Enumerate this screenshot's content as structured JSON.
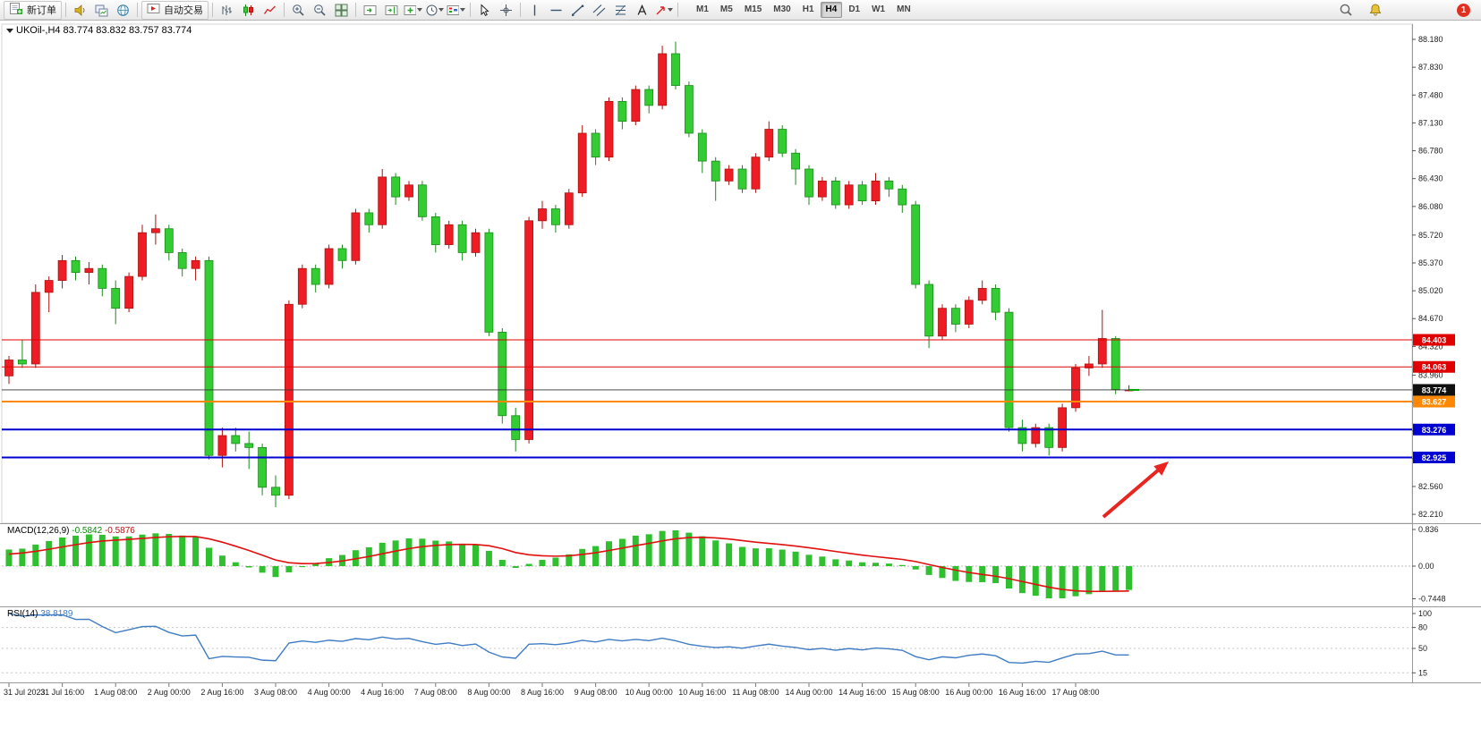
{
  "toolbar": {
    "new_order_label": "新订单",
    "auto_trading_label": "自动交易",
    "timeframes": [
      "M1",
      "M5",
      "M15",
      "M30",
      "H1",
      "H4",
      "D1",
      "W1",
      "MN"
    ],
    "active_timeframe": "H4",
    "notification_count": "1"
  },
  "chart": {
    "title": "UKOil-,H4 83.774 83.832 83.757 83.774",
    "symbol": "UKOil-",
    "timeframe": "H4"
  },
  "macd": {
    "label": "MACD(12,26,9)",
    "main_value": "-0.5842",
    "signal_value": "-0.5876",
    "ticks": [
      {
        "label": "0.836",
        "value": 0.836
      },
      {
        "label": "0.00",
        "value": 0
      },
      {
        "label": "-0.7448",
        "value": -0.7448
      }
    ]
  },
  "rsi": {
    "label": "RSI(14)",
    "value": "38.8189",
    "ticks": [
      {
        "label": "100",
        "value": 100
      },
      {
        "label": "80",
        "value": 80
      },
      {
        "label": "50",
        "value": 50
      },
      {
        "label": "15",
        "value": 15
      }
    ]
  },
  "chart_data": {
    "type": "candlestick",
    "symbol": "UKOil-",
    "timeframe": "H4",
    "ohlc_current": {
      "open": "83.774",
      "high": "83.832",
      "low": "83.757",
      "close": "83.774"
    },
    "ylim": [
      82.12,
      88.34
    ],
    "price_ticks": [
      "88.180",
      "87.830",
      "87.480",
      "87.130",
      "86.780",
      "86.430",
      "86.080",
      "85.720",
      "85.370",
      "85.020",
      "84.670",
      "84.320",
      "83.960",
      "83.610",
      "83.260",
      "82.910",
      "82.560",
      "82.210"
    ],
    "time_labels": [
      "31 Jul 2023",
      "31 Jul 16:00",
      "1 Aug 08:00",
      "2 Aug 00:00",
      "2 Aug 16:00",
      "3 Aug 08:00",
      "4 Aug 00:00",
      "4 Aug 16:00",
      "7 Aug 08:00",
      "8 Aug 00:00",
      "8 Aug 16:00",
      "9 Aug 08:00",
      "10 Aug 00:00",
      "10 Aug 16:00",
      "11 Aug 08:00",
      "14 Aug 00:00",
      "14 Aug 16:00",
      "15 Aug 08:00",
      "16 Aug 00:00",
      "16 Aug 16:00",
      "17 Aug 08:00"
    ],
    "candles": [
      [
        83.95,
        84.2,
        83.85,
        84.15
      ],
      [
        84.15,
        84.4,
        84.05,
        84.1
      ],
      [
        84.1,
        85.1,
        84.05,
        85.0
      ],
      [
        85.0,
        85.2,
        84.75,
        85.15
      ],
      [
        85.15,
        85.47,
        85.05,
        85.4
      ],
      [
        85.4,
        85.45,
        85.15,
        85.25
      ],
      [
        85.25,
        85.38,
        85.1,
        85.3
      ],
      [
        85.3,
        85.35,
        84.95,
        85.05
      ],
      [
        85.05,
        85.15,
        84.6,
        84.8
      ],
      [
        84.8,
        85.25,
        84.75,
        85.2
      ],
      [
        85.2,
        85.85,
        85.15,
        85.75
      ],
      [
        85.75,
        85.98,
        85.6,
        85.8
      ],
      [
        85.8,
        85.85,
        85.4,
        85.5
      ],
      [
        85.5,
        85.55,
        85.2,
        85.3
      ],
      [
        85.3,
        85.45,
        85.15,
        85.4
      ],
      [
        85.4,
        85.45,
        82.9,
        82.95
      ],
      [
        82.95,
        83.3,
        82.8,
        83.2
      ],
      [
        83.2,
        83.3,
        83.0,
        83.1
      ],
      [
        83.1,
        83.25,
        82.78,
        83.05
      ],
      [
        83.05,
        83.1,
        82.45,
        82.55
      ],
      [
        82.55,
        82.7,
        82.3,
        82.45
      ],
      [
        82.45,
        84.9,
        82.4,
        84.85
      ],
      [
        84.85,
        85.35,
        84.8,
        85.3
      ],
      [
        85.3,
        85.35,
        85.0,
        85.1
      ],
      [
        85.1,
        85.6,
        85.05,
        85.55
      ],
      [
        85.55,
        85.6,
        85.3,
        85.4
      ],
      [
        85.4,
        86.05,
        85.35,
        86.0
      ],
      [
        86.0,
        86.05,
        85.75,
        85.85
      ],
      [
        85.85,
        86.55,
        85.8,
        86.45
      ],
      [
        86.45,
        86.5,
        86.1,
        86.2
      ],
      [
        86.2,
        86.4,
        86.15,
        86.35
      ],
      [
        86.35,
        86.4,
        85.9,
        85.95
      ],
      [
        85.95,
        86.0,
        85.5,
        85.6
      ],
      [
        85.6,
        85.9,
        85.55,
        85.85
      ],
      [
        85.85,
        85.9,
        85.4,
        85.5
      ],
      [
        85.5,
        85.8,
        85.45,
        85.75
      ],
      [
        85.75,
        85.8,
        84.45,
        84.5
      ],
      [
        84.5,
        84.55,
        83.35,
        83.45
      ],
      [
        83.45,
        83.55,
        83.0,
        83.15
      ],
      [
        83.15,
        85.95,
        83.1,
        85.9
      ],
      [
        85.9,
        86.15,
        85.8,
        86.05
      ],
      [
        86.05,
        86.1,
        85.75,
        85.85
      ],
      [
        85.85,
        86.3,
        85.8,
        86.25
      ],
      [
        86.25,
        87.1,
        86.2,
        87.0
      ],
      [
        87.0,
        87.05,
        86.6,
        86.7
      ],
      [
        86.7,
        87.45,
        86.65,
        87.4
      ],
      [
        87.4,
        87.45,
        87.05,
        87.15
      ],
      [
        87.15,
        87.6,
        87.1,
        87.55
      ],
      [
        87.55,
        87.6,
        87.25,
        87.35
      ],
      [
        87.35,
        88.1,
        87.3,
        88.0
      ],
      [
        88.0,
        88.15,
        87.55,
        87.6
      ],
      [
        87.6,
        87.65,
        86.95,
        87.0
      ],
      [
        87.0,
        87.05,
        86.5,
        86.65
      ],
      [
        86.65,
        86.7,
        86.15,
        86.4
      ],
      [
        86.4,
        86.6,
        86.35,
        86.55
      ],
      [
        86.55,
        86.6,
        86.25,
        86.3
      ],
      [
        86.3,
        86.75,
        86.25,
        86.7
      ],
      [
        86.7,
        87.15,
        86.65,
        87.05
      ],
      [
        87.05,
        87.1,
        86.7,
        86.75
      ],
      [
        86.75,
        86.8,
        86.35,
        86.55
      ],
      [
        86.55,
        86.6,
        86.1,
        86.2
      ],
      [
        86.2,
        86.45,
        86.15,
        86.4
      ],
      [
        86.4,
        86.45,
        86.05,
        86.1
      ],
      [
        86.1,
        86.4,
        86.05,
        86.35
      ],
      [
        86.35,
        86.4,
        86.1,
        86.15
      ],
      [
        86.15,
        86.5,
        86.1,
        86.4
      ],
      [
        86.4,
        86.45,
        86.2,
        86.3
      ],
      [
        86.3,
        86.35,
        86.0,
        86.1
      ],
      [
        86.1,
        86.15,
        85.05,
        85.1
      ],
      [
        85.1,
        85.15,
        84.3,
        84.45
      ],
      [
        84.45,
        84.85,
        84.4,
        84.8
      ],
      [
        84.8,
        84.85,
        84.5,
        84.6
      ],
      [
        84.6,
        84.95,
        84.55,
        84.9
      ],
      [
        84.9,
        85.15,
        84.85,
        85.05
      ],
      [
        85.05,
        85.1,
        84.65,
        84.75
      ],
      [
        84.75,
        84.8,
        83.25,
        83.3
      ],
      [
        83.3,
        83.4,
        83.0,
        83.1
      ],
      [
        83.1,
        83.35,
        83.05,
        83.3
      ],
      [
        83.3,
        83.35,
        82.95,
        83.05
      ],
      [
        83.05,
        83.6,
        83.0,
        83.55
      ],
      [
        83.55,
        84.1,
        83.5,
        84.05
      ],
      [
        84.05,
        84.2,
        83.95,
        84.1
      ],
      [
        84.1,
        84.78,
        84.05,
        84.42
      ],
      [
        84.42,
        84.45,
        83.72,
        83.78
      ],
      [
        83.774,
        83.832,
        83.757,
        83.774
      ]
    ],
    "hlines": [
      {
        "price": 84.403,
        "label": "84.403",
        "color": "#e00000",
        "width": 1
      },
      {
        "price": 84.063,
        "label": "84.063",
        "color": "#e00000",
        "width": 1
      },
      {
        "price": 83.627,
        "label": "83.627",
        "color": "#ff8800",
        "width": 2
      },
      {
        "price": 83.276,
        "label": "83.276",
        "color": "#0000d0",
        "width": 2
      },
      {
        "price": 82.925,
        "label": "82.925",
        "color": "#0000d0",
        "width": 2
      }
    ],
    "current_price": {
      "price": 83.774,
      "label": "83.774",
      "color": "#101010"
    },
    "colors": {
      "up": "#ee1c25",
      "down": "#33cc33",
      "up_wick": "#aa1410",
      "down_wick": "#1d8a1d"
    },
    "indicator_colors": {
      "macd_hist": "#2fbf2f",
      "macd_signal": "#e01010",
      "rsi_line": "#3f7cc4"
    },
    "annotation_arrow": {
      "color": "#e8251f"
    }
  }
}
